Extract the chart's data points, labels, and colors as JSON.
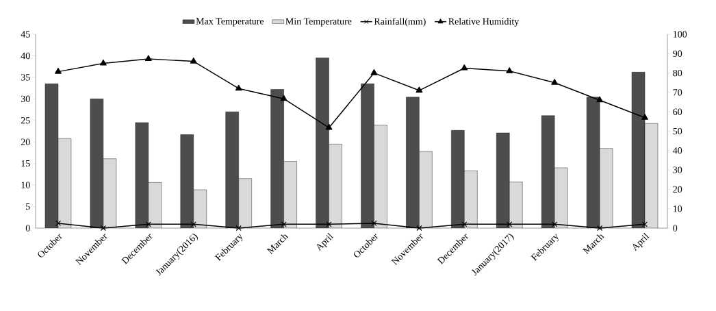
{
  "chart_data": {
    "type": "bar",
    "categories": [
      "October",
      "November",
      "December",
      "January(2016)",
      "February",
      "March",
      "April",
      "October",
      "November",
      "December",
      "January(2017)",
      "February",
      "March",
      "April"
    ],
    "series": [
      {
        "name": "Max Temperature",
        "color": "#4d4d4d",
        "values": [
          33.5,
          30,
          24.5,
          21.7,
          27,
          32.2,
          39.5,
          33.5,
          30.4,
          22.7,
          22.1,
          26.1,
          30.4,
          36.2
        ]
      },
      {
        "name": "Min Temperature",
        "color": "#d9d9d9",
        "values": [
          20.8,
          16.1,
          10.6,
          8.9,
          11.5,
          15.5,
          19.5,
          23.9,
          17.8,
          13.3,
          10.7,
          14,
          18.5,
          24.3
        ]
      },
      {
        "name": "Rainfall(mm)",
        "type": "line",
        "axis": "y2",
        "marker": "cross",
        "color": "#000000",
        "values": [
          2.5,
          0,
          2,
          2,
          0,
          2,
          2,
          2.5,
          0,
          2,
          2,
          2,
          0,
          2
        ]
      },
      {
        "name": "Relative Humidity",
        "type": "line",
        "axis": "y2",
        "marker": "triangle",
        "color": "#000000",
        "values": [
          80.7,
          85,
          87.3,
          86,
          72,
          66.7,
          51.8,
          80,
          71,
          82.5,
          81,
          75,
          66,
          57
        ]
      }
    ],
    "ylim": [
      0,
      45
    ],
    "yticks": [
      0,
      5,
      10,
      15,
      20,
      25,
      30,
      35,
      40,
      45
    ],
    "y2lim": [
      0,
      100
    ],
    "y2ticks": [
      0,
      10,
      20,
      30,
      40,
      50,
      60,
      70,
      80,
      90,
      100
    ],
    "legend": "top",
    "grid": false,
    "line_style": "solid"
  }
}
